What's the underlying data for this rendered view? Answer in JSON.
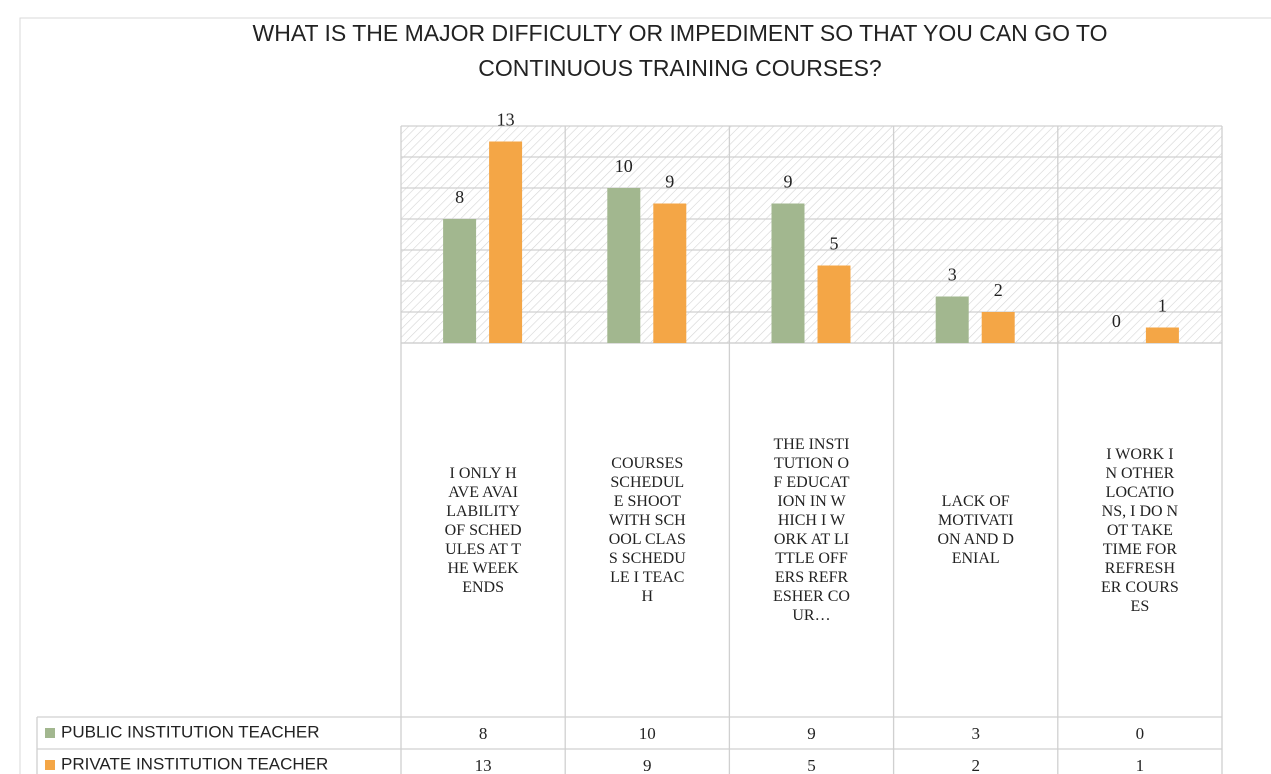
{
  "chart_data": {
    "type": "bar",
    "title": "WHAT IS THE MAJOR DIFFICULTY OR IMPEDIMENT SO THAT YOU CAN GO TO CONTINUOUS TRAINING COURSES?",
    "categories": [
      "I ONLY HAVE AVAILABILITY OF SCHEDULES AT THE WEEKENDS",
      "COURSES SCHEDULE SHOOT WITH SCHOOL CLASS SCHEDULE I TEACH",
      "THE INSTITUTION OF EDUCATION IN WHICH I WORK AT LITTLE OFFERS REFRESHER COUR…",
      "LACK OF MOTIVATION AND DENIAL",
      "I WORK IN OTHER LOCATIONS, I DO NOT TAKE TIME FOR REFRESHER COURSES"
    ],
    "series": [
      {
        "name": "PUBLIC INSTITUTION TEACHER",
        "color": "#a2b78f",
        "values": [
          8,
          10,
          9,
          3,
          0
        ]
      },
      {
        "name": "PRIVATE INSTITUTION TEACHER",
        "color": "#f4a646",
        "values": [
          13,
          9,
          5,
          2,
          1
        ]
      }
    ],
    "ylim": [
      0,
      14
    ],
    "yticks": [
      0,
      2,
      4,
      6,
      8,
      10,
      12,
      14
    ],
    "grid": true
  }
}
